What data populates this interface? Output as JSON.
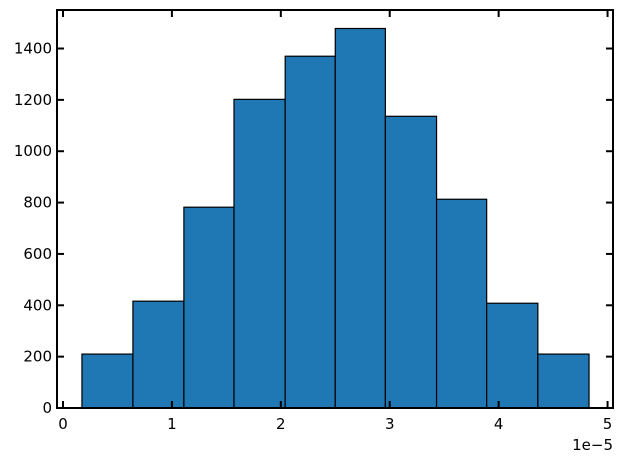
{
  "chart_data": {
    "type": "bar",
    "subtype": "histogram",
    "bin_edges": [
      0.174,
      0.642,
      1.11,
      1.57,
      2.04,
      2.5,
      2.96,
      3.43,
      3.89,
      4.36,
      4.83
    ],
    "values": [
      210,
      416,
      782,
      1202,
      1370,
      1478,
      1136,
      813,
      408,
      210
    ],
    "x_scale_factor": "1e-5",
    "x_offset_text": "1e−5",
    "xlim": [
      -0.055,
      5.05
    ],
    "ylim": [
      0,
      1550
    ],
    "xticks": [
      "0",
      "1",
      "2",
      "3",
      "4",
      "5"
    ],
    "yticks": [
      "0",
      "200",
      "400",
      "600",
      "800",
      "1000",
      "1200",
      "1400"
    ],
    "title": "",
    "xlabel": "",
    "ylabel": "",
    "grid": false,
    "tick_direction": "in",
    "ticks_on_all_sides": true,
    "bar_color": "#1f77b4",
    "edge_color": "#000000"
  }
}
